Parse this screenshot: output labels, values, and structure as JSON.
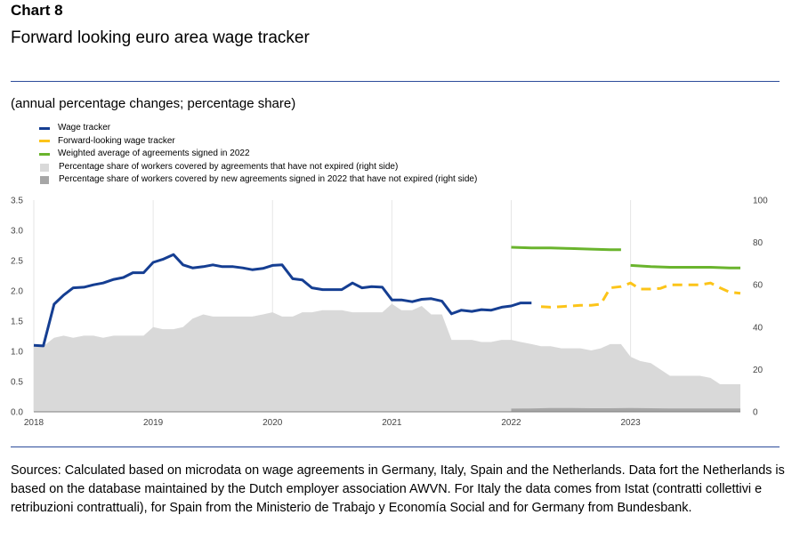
{
  "header": {
    "label": "Chart 8",
    "title": "Forward looking euro area wage tracker",
    "subtitle": "(annual percentage changes; percentage share)"
  },
  "legend": {
    "items": [
      {
        "label": "Wage tracker",
        "style": "line",
        "color": "#153e92"
      },
      {
        "label": "Forward-looking wage tracker",
        "style": "dash",
        "color": "#fcc419"
      },
      {
        "label": "Weighted average of agreements signed in 2022",
        "style": "line",
        "color": "#6ab42d"
      },
      {
        "label": "Percentage share of workers covered by agreements that have not expired (right side)",
        "style": "box",
        "color": "#d9d9d9"
      },
      {
        "label": "Percentage share of workers covered by new agreements signed in 2022 that have not expired (right side)",
        "style": "box",
        "color": "#a6a6a6"
      }
    ]
  },
  "chart_data": {
    "type": "line",
    "x_axis": {
      "ticks": [
        "2018",
        "2019",
        "2020",
        "2021",
        "2022",
        "2023"
      ],
      "range_years": [
        2018,
        2023.92
      ]
    },
    "y_left": {
      "ticks": [
        "0.0",
        "0.5",
        "1.0",
        "1.5",
        "2.0",
        "2.5",
        "3.0",
        "3.5"
      ],
      "range": [
        0,
        3.5
      ]
    },
    "y_right": {
      "ticks": [
        "0",
        "20",
        "40",
        "60",
        "80",
        "100"
      ],
      "range": [
        0,
        100
      ]
    },
    "series": [
      {
        "name": "Wage tracker",
        "axis": "left",
        "kind": "line",
        "color": "#153e92",
        "x": [
          2018.0,
          2018.08,
          2018.17,
          2018.25,
          2018.33,
          2018.42,
          2018.5,
          2018.58,
          2018.67,
          2018.75,
          2018.83,
          2018.92,
          2019.0,
          2019.08,
          2019.17,
          2019.25,
          2019.33,
          2019.42,
          2019.5,
          2019.58,
          2019.67,
          2019.75,
          2019.83,
          2019.92,
          2020.0,
          2020.08,
          2020.17,
          2020.25,
          2020.33,
          2020.42,
          2020.5,
          2020.58,
          2020.67,
          2020.75,
          2020.83,
          2020.92,
          2021.0,
          2021.08,
          2021.17,
          2021.25,
          2021.33,
          2021.42,
          2021.5,
          2021.58,
          2021.67,
          2021.75,
          2021.83,
          2021.92,
          2022.0,
          2022.08,
          2022.17
        ],
        "values": [
          1.1,
          1.09,
          1.78,
          1.93,
          2.05,
          2.06,
          2.1,
          2.13,
          2.19,
          2.22,
          2.3,
          2.3,
          2.47,
          2.52,
          2.6,
          2.43,
          2.38,
          2.4,
          2.43,
          2.4,
          2.4,
          2.38,
          2.35,
          2.37,
          2.42,
          2.43,
          2.2,
          2.18,
          2.05,
          2.02,
          2.02,
          2.02,
          2.13,
          2.05,
          2.07,
          2.06,
          1.85,
          1.85,
          1.82,
          1.86,
          1.87,
          1.83,
          1.62,
          1.68,
          1.66,
          1.69,
          1.68,
          1.73,
          1.75,
          1.8,
          1.8
        ]
      },
      {
        "name": "Forward-looking wage tracker",
        "axis": "left",
        "kind": "dash",
        "color": "#fcc419",
        "x": [
          2022.25,
          2022.33,
          2022.42,
          2022.5,
          2022.58,
          2022.67,
          2022.75,
          2022.83,
          2022.92,
          2023.0,
          2023.08,
          2023.17,
          2023.25,
          2023.33,
          2023.42,
          2023.5,
          2023.58,
          2023.67,
          2023.75,
          2023.83,
          2023.92
        ],
        "values": [
          1.74,
          1.73,
          1.74,
          1.75,
          1.76,
          1.76,
          1.78,
          2.05,
          2.07,
          2.13,
          2.03,
          2.03,
          2.04,
          2.1,
          2.1,
          2.1,
          2.1,
          2.13,
          2.05,
          1.98,
          1.96
        ]
      },
      {
        "name": "Weighted average of agreements signed in 2022",
        "axis": "left",
        "kind": "line",
        "color": "#6ab42d",
        "segments": [
          {
            "x": [
              2022.0,
              2022.17,
              2022.33,
              2022.5,
              2022.67,
              2022.83,
              2022.92
            ],
            "values": [
              2.72,
              2.71,
              2.71,
              2.7,
              2.69,
              2.68,
              2.68
            ]
          },
          {
            "x": [
              2023.0,
              2023.17,
              2023.33,
              2023.5,
              2023.67,
              2023.83,
              2023.92
            ],
            "values": [
              2.42,
              2.4,
              2.39,
              2.39,
              2.39,
              2.38,
              2.38
            ]
          }
        ]
      },
      {
        "name": "Percentage share of workers covered by agreements that have not expired (right side)",
        "axis": "right",
        "kind": "area",
        "color": "#d9d9d9",
        "x": [
          2018.0,
          2018.08,
          2018.17,
          2018.25,
          2018.33,
          2018.42,
          2018.5,
          2018.58,
          2018.67,
          2018.75,
          2018.83,
          2018.92,
          2019.0,
          2019.08,
          2019.17,
          2019.25,
          2019.33,
          2019.42,
          2019.5,
          2019.58,
          2019.67,
          2019.75,
          2019.83,
          2019.92,
          2020.0,
          2020.08,
          2020.17,
          2020.25,
          2020.33,
          2020.42,
          2020.5,
          2020.58,
          2020.67,
          2020.75,
          2020.83,
          2020.92,
          2021.0,
          2021.08,
          2021.17,
          2021.25,
          2021.33,
          2021.42,
          2021.5,
          2021.58,
          2021.67,
          2021.75,
          2021.83,
          2021.92,
          2022.0,
          2022.08,
          2022.17,
          2022.25,
          2022.33,
          2022.42,
          2022.5,
          2022.58,
          2022.67,
          2022.75,
          2022.83,
          2022.92,
          2023.0,
          2023.08,
          2023.17,
          2023.25,
          2023.33,
          2023.42,
          2023.5,
          2023.58,
          2023.67,
          2023.75,
          2023.83,
          2023.92
        ],
        "values": [
          32,
          31,
          35,
          36,
          35,
          36,
          36,
          35,
          36,
          36,
          36,
          36,
          40,
          39,
          39,
          40,
          44,
          46,
          45,
          45,
          45,
          45,
          45,
          46,
          47,
          45,
          45,
          47,
          47,
          48,
          48,
          48,
          47,
          47,
          47,
          47,
          51,
          48,
          48,
          50,
          46,
          46,
          34,
          34,
          34,
          33,
          33,
          34,
          34,
          33,
          32,
          31,
          31,
          30,
          30,
          30,
          29,
          30,
          32,
          32,
          26,
          24,
          23,
          20,
          17,
          17,
          17,
          17,
          16,
          13,
          13,
          13
        ]
      },
      {
        "name": "Percentage share of workers covered by new agreements signed in 2022 that have not expired (right side)",
        "axis": "right",
        "kind": "area",
        "color": "#a6a6a6",
        "x": [
          2022.0,
          2022.17,
          2022.33,
          2022.5,
          2022.67,
          2022.83,
          2023.0,
          2023.17,
          2023.33,
          2023.5,
          2023.67,
          2023.92
        ],
        "values": [
          1.5,
          1.6,
          1.8,
          1.8,
          1.7,
          1.7,
          1.8,
          1.7,
          1.6,
          1.6,
          1.6,
          1.6
        ]
      }
    ]
  },
  "sources": "Sources: Calculated based on microdata on wage agreements in Germany, Italy, Spain and the Netherlands. Data fort the Netherlands is based on the database maintained by the Dutch employer association AWVN. For Italy the data comes from Istat (contratti collettivi e retribuzioni contrattuali), for Spain from the Ministerio de Trabajo y Economía Social and for Germany from Bundesbank."
}
